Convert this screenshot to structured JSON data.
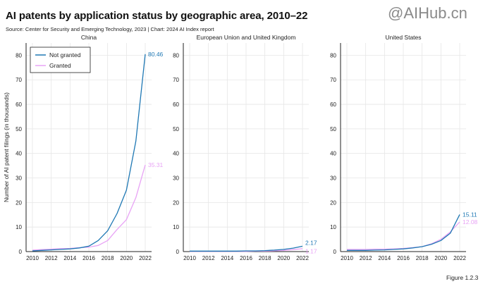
{
  "title": "AI patents by application status by geographic area, 2010–22",
  "source": "Source: Center for Security and Emerging Technology, 2023 | Chart: 2024 AI Index report",
  "watermark": "@AIHub.cn",
  "figure_label": "Figure 1.2.3",
  "colors": {
    "not_granted": "#1f78b4",
    "granted": "#e8a3f5",
    "grid": "#e6e6e6",
    "axis": "#222222"
  },
  "chart_data": {
    "type": "line",
    "ylabel": "Number of AI patent filings (in thousands)",
    "ylim": [
      0,
      85
    ],
    "yticks": [
      "0",
      "10",
      "20",
      "30",
      "40",
      "50",
      "60",
      "70",
      "80"
    ],
    "xticks": [
      "2010",
      "2012",
      "2014",
      "2016",
      "2018",
      "2020",
      "2022"
    ],
    "x": [
      2010,
      2011,
      2012,
      2013,
      2014,
      2015,
      2016,
      2017,
      2018,
      2019,
      2020,
      2021,
      2022
    ],
    "legend": {
      "position": "top-left",
      "entries": [
        "Not granted",
        "Granted"
      ]
    },
    "panels": [
      {
        "title": "China",
        "series": [
          {
            "name": "Not granted",
            "values": [
              0.3,
              0.5,
              0.7,
              0.9,
              1.1,
              1.5,
              2.2,
              4.5,
              8.5,
              15.5,
              25.0,
              45.0,
              80.46
            ],
            "end_label": "80.46"
          },
          {
            "name": "Granted",
            "values": [
              0.6,
              0.8,
              1.0,
              1.2,
              1.3,
              1.6,
              1.8,
              2.5,
              4.5,
              9.0,
              13.0,
              22.0,
              35.31
            ],
            "end_label": "35.31"
          }
        ]
      },
      {
        "title": "European Union and United Kingdom",
        "series": [
          {
            "name": "Not granted",
            "values": [
              0.2,
              0.2,
              0.2,
              0.2,
              0.2,
              0.2,
              0.3,
              0.3,
              0.4,
              0.6,
              0.9,
              1.4,
              2.17
            ],
            "end_label": "2.17"
          },
          {
            "name": "Granted",
            "values": [
              0.1,
              0.1,
              0.1,
              0.1,
              0.1,
              0.1,
              0.1,
              0.2,
              0.2,
              0.3,
              0.5,
              0.8,
              1.17
            ],
            "end_label": "1.17"
          }
        ]
      },
      {
        "title": "United States",
        "series": [
          {
            "name": "Not granted",
            "values": [
              0.5,
              0.5,
              0.5,
              0.6,
              0.7,
              0.9,
              1.1,
              1.5,
              2.0,
              3.0,
              4.5,
              7.5,
              15.11
            ],
            "end_label": "15.11"
          },
          {
            "name": "Granted",
            "values": [
              0.9,
              0.9,
              0.9,
              1.0,
              1.0,
              1.1,
              1.3,
              1.6,
              2.0,
              3.2,
              5.0,
              8.0,
              12.08
            ],
            "end_label": "12.08"
          }
        ]
      }
    ]
  }
}
